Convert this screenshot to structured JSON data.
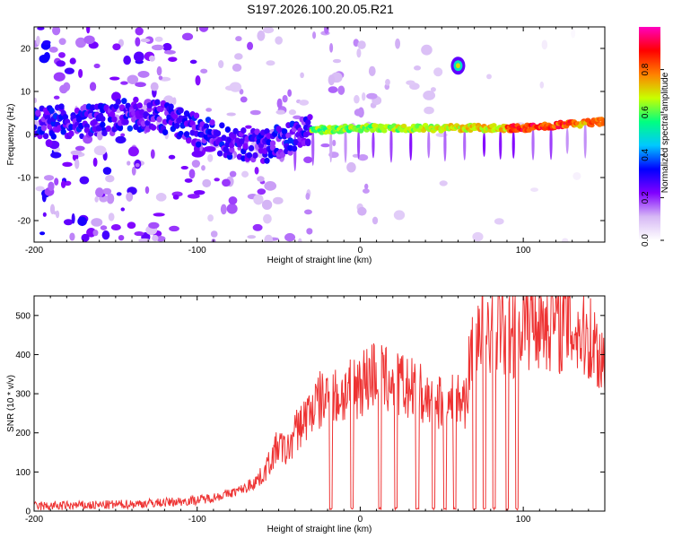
{
  "title": "S197.2026.100.20.05.R21",
  "chart_data": [
    {
      "type": "heatmap",
      "xlabel": "Height of straight line (km)",
      "ylabel": "Frequency (Hz)",
      "xlim": [
        -200,
        150
      ],
      "ylim": [
        -25,
        25
      ],
      "xticks": [
        -200,
        -100,
        0,
        100
      ],
      "yticks": [
        -20,
        -10,
        0,
        10,
        20
      ],
      "colorbar": {
        "label": "Normalized spectral amplitude",
        "range": [
          0,
          1
        ],
        "ticks": [
          0.0,
          0.2,
          0.4,
          0.6,
          0.8
        ],
        "tick_labels": [
          "0.0",
          "0.2",
          "0.4",
          "0.6",
          "0.8"
        ],
        "stops": [
          "#ffffff",
          "#d6b8f5",
          "#8000ff",
          "#0000ff",
          "#00c8ff",
          "#00ff80",
          "#c8ff00",
          "#ff8000",
          "#ff0000",
          "#ff00c0"
        ]
      },
      "ridge": [
        {
          "x": -150,
          "f": 5
        },
        {
          "x": -120,
          "f": 4
        },
        {
          "x": -100,
          "f": 1
        },
        {
          "x": -80,
          "f": -2
        },
        {
          "x": -60,
          "f": -3
        },
        {
          "x": -30,
          "f": 1
        },
        {
          "x": 0,
          "f": 1.5
        },
        {
          "x": 60,
          "f": 1.5
        },
        {
          "x": 100,
          "f": 1.5
        },
        {
          "x": 150,
          "f": 3
        }
      ],
      "blob": {
        "x": 60,
        "f": 16
      }
    },
    {
      "type": "line",
      "xlabel": "Height of straight line (km)",
      "ylabel": "SNR (10 * v/v)",
      "xlim": [
        -200,
        150
      ],
      "ylim": [
        0,
        550
      ],
      "xticks": [
        -200,
        -100,
        0,
        100
      ],
      "yticks": [
        0,
        100,
        200,
        300,
        400,
        500
      ],
      "series": [
        {
          "name": "SNR",
          "color": "#ee3333",
          "x": [
            -200,
            -180,
            -160,
            -140,
            -120,
            -100,
            -90,
            -80,
            -70,
            -60,
            -55,
            -50,
            -45,
            -40,
            -35,
            -30,
            -25,
            -20,
            -15,
            -10,
            -5,
            0,
            5,
            10,
            15,
            20,
            25,
            30,
            35,
            40,
            45,
            50,
            55,
            60,
            65,
            70,
            75,
            80,
            85,
            90,
            95,
            100,
            110,
            120,
            130,
            140,
            150
          ],
          "values": [
            12,
            14,
            15,
            18,
            22,
            28,
            35,
            45,
            60,
            90,
            130,
            170,
            150,
            200,
            230,
            260,
            280,
            290,
            290,
            300,
            320,
            330,
            340,
            360,
            330,
            340,
            320,
            310,
            300,
            290,
            280,
            290,
            270,
            280,
            290,
            470,
            480,
            460,
            480,
            450,
            470,
            490,
            500,
            490,
            470,
            450,
            380
          ]
        }
      ],
      "dropouts_x": [
        -18,
        -5,
        12,
        22,
        35,
        45,
        52,
        58,
        70,
        76,
        82,
        90,
        96
      ]
    }
  ]
}
